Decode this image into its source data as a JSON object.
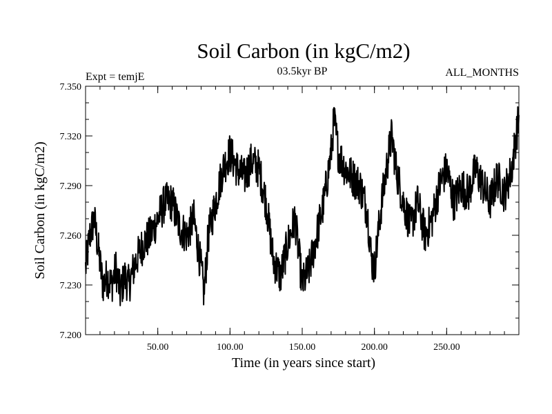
{
  "chart_data": {
    "type": "line",
    "title": "Soil Carbon (in kgC/m2)",
    "subtitle_left": "Expt = temjE",
    "subtitle_center": "03.5kyr BP",
    "subtitle_right": "ALL_MONTHS",
    "xlabel": "Time (in years since start)",
    "ylabel": "Soil Carbon (in kgC/m2)",
    "xlim": [
      0,
      300
    ],
    "ylim": [
      7.2,
      7.35
    ],
    "xticks": [
      50,
      100,
      150,
      200,
      250
    ],
    "xtick_labels": [
      "50.00",
      "100.00",
      "150.00",
      "200.00",
      "250.00"
    ],
    "yticks": [
      7.2,
      7.23,
      7.26,
      7.29,
      7.32,
      7.35
    ],
    "ytick_labels": [
      "7.200",
      "7.230",
      "7.260",
      "7.290",
      "7.320",
      "7.350"
    ],
    "series": [
      {
        "name": "Soil Carbon",
        "x": [
          0,
          3,
          6,
          9,
          12,
          15,
          18,
          21,
          24,
          27,
          30,
          35,
          40,
          45,
          50,
          55,
          60,
          65,
          70,
          75,
          80,
          82,
          85,
          90,
          95,
          100,
          105,
          110,
          115,
          120,
          125,
          130,
          135,
          140,
          145,
          150,
          155,
          160,
          165,
          170,
          172,
          175,
          180,
          185,
          190,
          195,
          198,
          200,
          205,
          210,
          212,
          215,
          220,
          225,
          230,
          235,
          240,
          245,
          250,
          255,
          260,
          265,
          270,
          275,
          280,
          285,
          290,
          295,
          298,
          300
        ],
        "y": [
          7.24,
          7.26,
          7.27,
          7.25,
          7.23,
          7.235,
          7.23,
          7.24,
          7.225,
          7.235,
          7.23,
          7.245,
          7.255,
          7.26,
          7.27,
          7.28,
          7.28,
          7.265,
          7.26,
          7.27,
          7.24,
          7.225,
          7.26,
          7.28,
          7.3,
          7.31,
          7.3,
          7.295,
          7.305,
          7.3,
          7.28,
          7.245,
          7.235,
          7.255,
          7.27,
          7.23,
          7.24,
          7.26,
          7.28,
          7.31,
          7.33,
          7.31,
          7.3,
          7.295,
          7.29,
          7.275,
          7.245,
          7.24,
          7.28,
          7.31,
          7.32,
          7.3,
          7.28,
          7.265,
          7.28,
          7.26,
          7.27,
          7.29,
          7.3,
          7.28,
          7.29,
          7.285,
          7.3,
          7.29,
          7.28,
          7.295,
          7.285,
          7.3,
          7.32,
          7.33
        ]
      }
    ]
  }
}
